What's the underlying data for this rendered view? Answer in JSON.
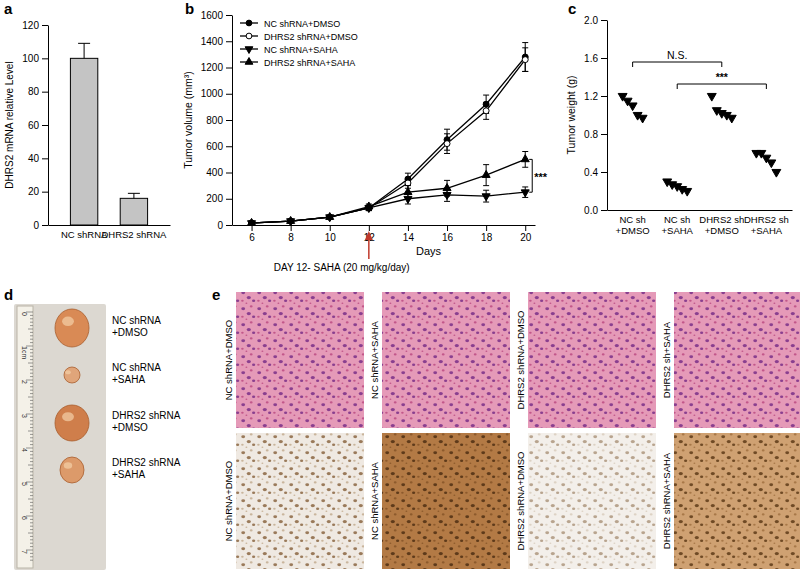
{
  "chart_data": [
    {
      "panel": "a",
      "type": "bar",
      "y_label": "DHRS2 mRNA relative Level",
      "categories": [
        "NC shRNA",
        "DHRS2 shRNA"
      ],
      "values": [
        100,
        16
      ],
      "errors": [
        9,
        3
      ],
      "color": "#c4c4c4",
      "ylim": [
        0,
        120
      ],
      "yticks": [
        0,
        20,
        40,
        60,
        80,
        100,
        120
      ]
    },
    {
      "panel": "b",
      "type": "line",
      "x_label": "Days",
      "y_label": "Tumor volume (mm³)",
      "x": [
        6,
        8,
        10,
        12,
        14,
        16,
        18,
        20
      ],
      "xlim": [
        5,
        20.5
      ],
      "xticks": [
        6,
        8,
        10,
        12,
        14,
        16,
        18,
        20
      ],
      "ylim": [
        0,
        1600
      ],
      "yticks": [
        0,
        200,
        400,
        600,
        800,
        1000,
        1200,
        1400,
        1600
      ],
      "legend": "top-left",
      "series": [
        {
          "name": "NC shRNA+DMSO",
          "color": "#000000",
          "marker": "circle",
          "values": [
            15,
            30,
            60,
            130,
            350,
            650,
            920,
            1280
          ],
          "errors": [
            5,
            6,
            10,
            20,
            45,
            80,
            70,
            110
          ]
        },
        {
          "name": "DHRS2 shRNA+DMSO",
          "color": "#000000",
          "marker": "open-circle",
          "values": [
            15,
            30,
            60,
            130,
            320,
            620,
            870,
            1260
          ],
          "errors": [
            5,
            6,
            10,
            20,
            40,
            75,
            65,
            90
          ]
        },
        {
          "name": "NC shRNA+SAHA",
          "color": "#000000",
          "marker": "triangle-down",
          "values": [
            15,
            30,
            60,
            130,
            200,
            230,
            220,
            250
          ],
          "errors": [
            3,
            5,
            10,
            20,
            40,
            50,
            45,
            40
          ]
        },
        {
          "name": "DHRS2 shRNA+SAHA",
          "color": "#000000",
          "marker": "triangle-up",
          "values": [
            15,
            30,
            60,
            140,
            250,
            280,
            380,
            500
          ],
          "errors": [
            3,
            5,
            10,
            20,
            50,
            60,
            80,
            60
          ]
        }
      ],
      "annotations": [
        {
          "text": "DAY 12- SAHA (20 mg/kg/day)",
          "x": 12,
          "color": "#c0392b"
        },
        {
          "text": "***",
          "series": [
            "NC shRNA+SAHA",
            "DHRS2 shRNA+SAHA"
          ]
        }
      ]
    },
    {
      "panel": "c",
      "type": "scatter",
      "y_label": "Tumor weight (g)",
      "categories": [
        "NC sh +DMSO",
        "NC sh +SAHA",
        "DHRS2 sh +DMSO",
        "DHRS2 sh +SAHA"
      ],
      "values": [
        [
          1.2,
          1.15,
          1.1,
          1.0,
          0.97
        ],
        [
          0.3,
          0.27,
          0.25,
          0.22,
          0.2
        ],
        [
          1.2,
          1.05,
          1.02,
          1.0,
          0.97
        ],
        [
          0.6,
          0.6,
          0.55,
          0.5,
          0.4
        ]
      ],
      "marker": "triangle-down",
      "color": "#000000",
      "ylim": [
        0,
        2.0
      ],
      "yticks": [
        {
          "value": 0,
          "label": "0.0"
        },
        0.4,
        0.8,
        1.2,
        1.6,
        {
          "value": 2.0,
          "label": "2.0"
        }
      ],
      "annotations": [
        {
          "text": "N.S.",
          "categories": [
            "NC sh +DMSO",
            "DHRS2 sh +DMSO"
          ]
        },
        {
          "text": "***",
          "categories": [
            "NC sh +SAHA",
            "DHRS2 sh +SAHA"
          ]
        }
      ]
    }
  ],
  "photos": [
    {
      "panel": "d",
      "ruler": [
        "0",
        "1cm",
        "2",
        "3",
        "4",
        "5",
        "6",
        "7"
      ],
      "labels": [
        "NC shRNA +DMSO",
        "NC shRNA +SAHA",
        "DHRS2 shRNA +DMSO",
        "DHRS2 shRNA +SAHA"
      ]
    },
    {
      "panel": "e",
      "rows": [
        [
          "NC shRNA+DMSO",
          "NC shRNA+SAHA",
          "DHRS2 shRNA+DMSO",
          "DHRS2 sh+SAHA"
        ],
        [
          "NC shRNA+DMSO",
          "NC shRNA+SAHA",
          "DHRS2 shRNA+DMSO",
          "DHRS2 shRNA+SAHA"
        ]
      ]
    }
  ]
}
